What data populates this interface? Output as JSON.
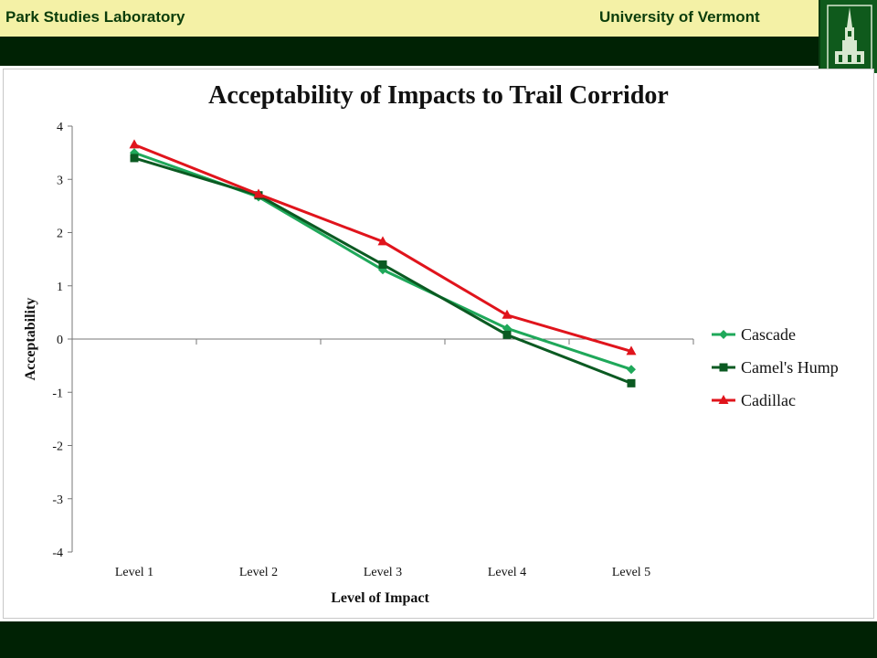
{
  "header": {
    "left_text": "Park Studies Laboratory",
    "right_text": "University of Vermont",
    "logo_icon": "university-tower-logo-icon"
  },
  "colors": {
    "header_band": "#f4f1a6",
    "dark_band": "#002204",
    "header_text": "#0b3d0b",
    "cascade": "#1fa85a",
    "camels_hump": "#0b5a22",
    "cadillac": "#e0141c"
  },
  "chart_data": {
    "type": "line",
    "title": "Acceptability of Impacts to Trail Corridor",
    "xlabel": "Level of Impact",
    "ylabel": "Acceptability",
    "categories": [
      "Level 1",
      "Level 2",
      "Level 3",
      "Level 4",
      "Level 5"
    ],
    "ylim": [
      -4,
      4
    ],
    "yticks": [
      "4",
      "3",
      "2",
      "1",
      "0",
      "-1",
      "-2",
      "-3",
      "-4"
    ],
    "grid": false,
    "legend_position": "right",
    "series": [
      {
        "name": "Cascade",
        "marker": "diamond",
        "color": "#1fa85a",
        "values": [
          3.5,
          2.67,
          1.3,
          0.2,
          -0.57
        ]
      },
      {
        "name": "Camel's Hump",
        "marker": "square",
        "color": "#0b5a22",
        "values": [
          3.4,
          2.7,
          1.4,
          0.08,
          -0.83
        ]
      },
      {
        "name": "Cadillac",
        "marker": "triangle",
        "color": "#e0141c",
        "values": [
          3.65,
          2.72,
          1.83,
          0.45,
          -0.23
        ]
      }
    ]
  }
}
